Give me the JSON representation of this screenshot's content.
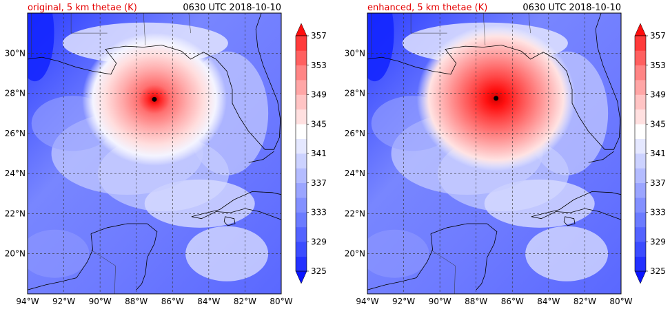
{
  "panels": [
    {
      "id": "original",
      "title_left": "original, 5 km thetae (K)",
      "title_right": "0630 UTC 2018-10-10",
      "title_color": "#e60000",
      "storm_center": {
        "lon": -87.0,
        "lat": 27.7
      },
      "core_intensity": "weaker"
    },
    {
      "id": "enhanced",
      "title_left": "enhanced, 5 km thetae (K)",
      "title_right": "0630 UTC 2018-10-10",
      "title_color": "#e60000",
      "storm_center": {
        "lon": -86.9,
        "lat": 27.75
      },
      "core_intensity": "stronger"
    }
  ],
  "map": {
    "lon_range": [
      -94,
      -80
    ],
    "lat_range": [
      18,
      32
    ],
    "lon_ticks": [
      "94°W",
      "92°W",
      "90°W",
      "88°W",
      "86°W",
      "84°W",
      "82°W",
      "80°W"
    ],
    "lon_tick_values": [
      -94,
      -92,
      -90,
      -88,
      -86,
      -84,
      -82,
      -80
    ],
    "lat_ticks": [
      "20°N",
      "22°N",
      "24°N",
      "26°N",
      "28°N",
      "30°N"
    ],
    "lat_tick_values": [
      20,
      22,
      24,
      26,
      28,
      30
    ],
    "gridlines": "dashed",
    "field": "5 km equivalent potential temperature (K)"
  },
  "colorbar": {
    "labels": [
      "325",
      "329",
      "333",
      "337",
      "341",
      "345",
      "349",
      "353",
      "357"
    ],
    "levels": [
      325,
      327,
      329,
      331,
      333,
      335,
      337,
      339,
      341,
      343,
      345,
      347,
      349,
      351,
      353,
      355,
      357
    ],
    "extend": "both",
    "colors": [
      "#0a14ff",
      "#2331ff",
      "#3b4cff",
      "#5363ff",
      "#6b7bff",
      "#8390ff",
      "#9ba5ff",
      "#b4bcff",
      "#ccd2ff",
      "#e5e8ff",
      "#ffffff",
      "#ffe0e0",
      "#ffc4c4",
      "#ffa6a6",
      "#ff8585",
      "#ff6060",
      "#ff3b3b",
      "#ff0d0d"
    ]
  }
}
